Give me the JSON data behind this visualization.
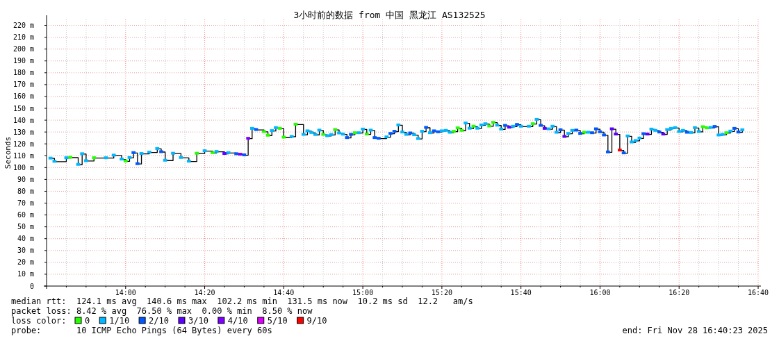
{
  "chart_data": {
    "type": "step",
    "title": "3小时前的数据 from 中国 黑龙江 AS132525",
    "ylabel": "Seconds",
    "xlim": [
      "2025-11-28T13:40",
      "2025-11-28T16:40"
    ],
    "xticks": [
      {
        "value": "2025-11-28T13:45",
        "label": null
      },
      {
        "value": "2025-11-28T13:50",
        "label": null
      },
      {
        "value": "2025-11-28T13:55",
        "label": null
      },
      {
        "value": "2025-11-28T14:00",
        "label": "14:00"
      },
      {
        "value": "2025-11-28T14:05",
        "label": null
      },
      {
        "value": "2025-11-28T14:10",
        "label": null
      },
      {
        "value": "2025-11-28T14:15",
        "label": null
      },
      {
        "value": "2025-11-28T14:20",
        "label": "14:20"
      },
      {
        "value": "2025-11-28T14:25",
        "label": null
      },
      {
        "value": "2025-11-28T14:30",
        "label": null
      },
      {
        "value": "2025-11-28T14:35",
        "label": null
      },
      {
        "value": "2025-11-28T14:40",
        "label": "14:40"
      },
      {
        "value": "2025-11-28T14:45",
        "label": null
      },
      {
        "value": "2025-11-28T14:50",
        "label": null
      },
      {
        "value": "2025-11-28T14:55",
        "label": null
      },
      {
        "value": "2025-11-28T15:00",
        "label": "15:00"
      },
      {
        "value": "2025-11-28T15:05",
        "label": null
      },
      {
        "value": "2025-11-28T15:10",
        "label": null
      },
      {
        "value": "2025-11-28T15:15",
        "label": null
      },
      {
        "value": "2025-11-28T15:20",
        "label": "15:20"
      },
      {
        "value": "2025-11-28T15:25",
        "label": null
      },
      {
        "value": "2025-11-28T15:30",
        "label": null
      },
      {
        "value": "2025-11-28T15:35",
        "label": null
      },
      {
        "value": "2025-11-28T15:40",
        "label": "15:40"
      },
      {
        "value": "2025-11-28T15:45",
        "label": null
      },
      {
        "value": "2025-11-28T15:50",
        "label": null
      },
      {
        "value": "2025-11-28T15:55",
        "label": null
      },
      {
        "value": "2025-11-28T16:00",
        "label": "16:00"
      },
      {
        "value": "2025-11-28T16:05",
        "label": null
      },
      {
        "value": "2025-11-28T16:10",
        "label": null
      },
      {
        "value": "2025-11-28T16:15",
        "label": null
      },
      {
        "value": "2025-11-28T16:20",
        "label": "16:20"
      },
      {
        "value": "2025-11-28T16:25",
        "label": null
      },
      {
        "value": "2025-11-28T16:30",
        "label": null
      },
      {
        "value": "2025-11-28T16:35",
        "label": null
      },
      {
        "value": "2025-11-28T16:40",
        "label": "16:40"
      }
    ],
    "ylim": [
      0,
      225
    ],
    "yticks": [
      {
        "value": 0,
        "label": "0"
      },
      {
        "value": 10,
        "label": "10 m"
      },
      {
        "value": 20,
        "label": "20 m"
      },
      {
        "value": 30,
        "label": "30 m"
      },
      {
        "value": 40,
        "label": "40 m"
      },
      {
        "value": 50,
        "label": "50 m"
      },
      {
        "value": 60,
        "label": "60 m"
      },
      {
        "value": 70,
        "label": "70 m"
      },
      {
        "value": 80,
        "label": "80 m"
      },
      {
        "value": 90,
        "label": "90 m"
      },
      {
        "value": 100,
        "label": "100 m"
      },
      {
        "value": 110,
        "label": "110 m"
      },
      {
        "value": 120,
        "label": "120 m"
      },
      {
        "value": 130,
        "label": "130 m"
      },
      {
        "value": 140,
        "label": "140 m"
      },
      {
        "value": 150,
        "label": "150 m"
      },
      {
        "value": 160,
        "label": "160 m"
      },
      {
        "value": 170,
        "label": "170 m"
      },
      {
        "value": 180,
        "label": "180 m"
      },
      {
        "value": 190,
        "label": "190 m"
      },
      {
        "value": 200,
        "label": "200 m"
      },
      {
        "value": 210,
        "label": "210 m"
      },
      {
        "value": 220,
        "label": "220 m"
      }
    ],
    "grid": true,
    "legend": "bottom",
    "legend_title": "loss color:",
    "annotations": [
      "median rtt:  124.1 ms avg  140.6 ms max  102.2 ms min  131.5 ms now  10.2 ms sd  12.2   am/s",
      "packet loss: 8.42 % avg  76.50 % max  0.00 % min  8.50 % now",
      "probe:       10 ICMP Echo Pings (64 Bytes) every 60s",
      "end: Fri Nov 28 16:40:23 2025"
    ],
    "x": [
      "2025-11-28T13:41",
      "2025-11-28T13:42",
      "2025-11-28T13:45",
      "2025-11-28T13:46",
      "2025-11-28T13:48",
      "2025-11-28T13:49",
      "2025-11-28T13:50",
      "2025-11-28T13:52",
      "2025-11-28T13:55",
      "2025-11-28T13:57",
      "2025-11-28T13:59",
      "2025-11-28T14:00",
      "2025-11-28T14:01",
      "2025-11-28T14:02",
      "2025-11-28T14:03",
      "2025-11-28T14:04",
      "2025-11-28T14:06",
      "2025-11-28T14:08",
      "2025-11-28T14:09",
      "2025-11-28T14:10",
      "2025-11-28T14:12",
      "2025-11-28T14:14",
      "2025-11-28T14:16",
      "2025-11-28T14:18",
      "2025-11-28T14:20",
      "2025-11-28T14:22",
      "2025-11-28T14:23",
      "2025-11-28T14:25",
      "2025-11-28T14:26",
      "2025-11-28T14:28",
      "2025-11-28T14:29",
      "2025-11-28T14:30",
      "2025-11-28T14:31",
      "2025-11-28T14:32",
      "2025-11-28T14:33",
      "2025-11-28T14:35",
      "2025-11-28T14:36",
      "2025-11-28T14:37",
      "2025-11-28T14:38",
      "2025-11-28T14:39",
      "2025-11-28T14:40",
      "2025-11-28T14:42",
      "2025-11-28T14:43",
      "2025-11-28T14:45",
      "2025-11-28T14:46",
      "2025-11-28T14:47",
      "2025-11-28T14:48",
      "2025-11-28T14:49",
      "2025-11-28T14:50",
      "2025-11-28T14:51",
      "2025-11-28T14:52",
      "2025-11-28T14:53",
      "2025-11-28T14:54",
      "2025-11-28T14:55",
      "2025-11-28T14:56",
      "2025-11-28T14:57",
      "2025-11-28T14:58",
      "2025-11-28T14:59",
      "2025-11-28T15:00",
      "2025-11-28T15:01",
      "2025-11-28T15:02",
      "2025-11-28T15:03",
      "2025-11-28T15:04",
      "2025-11-28T15:06",
      "2025-11-28T15:07",
      "2025-11-28T15:08",
      "2025-11-28T15:09",
      "2025-11-28T15:10",
      "2025-11-28T15:11",
      "2025-11-28T15:12",
      "2025-11-28T15:13",
      "2025-11-28T15:14",
      "2025-11-28T15:15",
      "2025-11-28T15:16",
      "2025-11-28T15:17",
      "2025-11-28T15:18",
      "2025-11-28T15:19",
      "2025-11-28T15:20",
      "2025-11-28T15:21",
      "2025-11-28T15:22",
      "2025-11-28T15:23",
      "2025-11-28T15:24",
      "2025-11-28T15:25",
      "2025-11-28T15:26",
      "2025-11-28T15:27",
      "2025-11-28T15:28",
      "2025-11-28T15:29",
      "2025-11-28T15:30",
      "2025-11-28T15:31",
      "2025-11-28T15:32",
      "2025-11-28T15:33",
      "2025-11-28T15:34",
      "2025-11-28T15:35",
      "2025-11-28T15:36",
      "2025-11-28T15:37",
      "2025-11-28T15:38",
      "2025-11-28T15:39",
      "2025-11-28T15:40",
      "2025-11-28T15:42",
      "2025-11-28T15:43",
      "2025-11-28T15:44",
      "2025-11-28T15:45",
      "2025-11-28T15:46",
      "2025-11-28T15:47",
      "2025-11-28T15:48",
      "2025-11-28T15:49",
      "2025-11-28T15:50",
      "2025-11-28T15:51",
      "2025-11-28T15:52",
      "2025-11-28T15:53",
      "2025-11-28T15:54",
      "2025-11-28T15:55",
      "2025-11-28T15:56",
      "2025-11-28T15:57",
      "2025-11-28T15:58",
      "2025-11-28T15:59",
      "2025-11-28T16:00",
      "2025-11-28T16:01",
      "2025-11-28T16:02",
      "2025-11-28T16:03",
      "2025-11-28T16:04",
      "2025-11-28T16:05",
      "2025-11-28T16:06",
      "2025-11-28T16:07",
      "2025-11-28T16:08",
      "2025-11-28T16:09",
      "2025-11-28T16:10",
      "2025-11-28T16:11",
      "2025-11-28T16:12",
      "2025-11-28T16:13",
      "2025-11-28T16:14",
      "2025-11-28T16:15",
      "2025-11-28T16:16",
      "2025-11-28T16:17",
      "2025-11-28T16:18",
      "2025-11-28T16:19",
      "2025-11-28T16:20",
      "2025-11-28T16:21",
      "2025-11-28T16:22",
      "2025-11-28T16:23",
      "2025-11-28T16:24",
      "2025-11-28T16:25",
      "2025-11-28T16:26",
      "2025-11-28T16:27",
      "2025-11-28T16:28",
      "2025-11-28T16:29",
      "2025-11-28T16:30",
      "2025-11-28T16:31",
      "2025-11-28T16:32",
      "2025-11-28T16:33",
      "2025-11-28T16:34",
      "2025-11-28T16:35",
      "2025-11-28T16:36"
    ],
    "series": [
      {
        "color": "#000000",
        "values": [
          107.7,
          105,
          108,
          108.4,
          102.4,
          111.4,
          105.5,
          108,
          108,
          110.2,
          106.9,
          105.3,
          108.2,
          112.3,
          103,
          111.6,
          112.7,
          115.8,
          113.1,
          105.9,
          111.8,
          108.2,
          105.1,
          111.8,
          113.9,
          112.3,
          113.3,
          111.6,
          112.3,
          111.4,
          111,
          110.4,
          124.4,
          132.8,
          131.8,
          130.1,
          127,
          130.9,
          133.4,
          132.8,
          125.4,
          126,
          136.3,
          127.7,
          130.7,
          129.3,
          127.6,
          131.3,
          127.7,
          126.6,
          127.5,
          131.8,
          128.9,
          127.9,
          125,
          127.7,
          129.1,
          129.1,
          132.2,
          128,
          131.3,
          125,
          124.4,
          125.6,
          128.5,
          130.3,
          135.7,
          129.7,
          127.7,
          128.9,
          127.4,
          124.2,
          130.3,
          133.6,
          129.1,
          130.7,
          129.9,
          130.7,
          131.1,
          129.5,
          130.3,
          133.2,
          131.1,
          137.3,
          132.9,
          134.6,
          132.9,
          135.7,
          136.7,
          134.8,
          137.9,
          135.5,
          132.2,
          135.3,
          133.8,
          134.6,
          136.1,
          134.6,
          134.6,
          136.7,
          140.4,
          135.3,
          132.8,
          132.4,
          134.6,
          129.5,
          131.6,
          126,
          128.5,
          131.1,
          131.3,
          128.5,
          129.5,
          129.5,
          129.1,
          132.4,
          129.9,
          127.2,
          112.9,
          132.4,
          128,
          114.5,
          112.1,
          126.4,
          121.3,
          122.5,
          124.6,
          128.3,
          128,
          132.2,
          131.1,
          129.7,
          128,
          131.8,
          132.8,
          133.4,
          130.1,
          131.1,
          129.5,
          129.3,
          133.4,
          130.1,
          134.2,
          133.2,
          133.6,
          134.4,
          127.2,
          127.7,
          129.1,
          130.5,
          132.8,
          129.7,
          131.6
        ]
      },
      {
        "name": "0",
        "type": "scatter",
        "marker": "square",
        "color": "#26ff00",
        "x": [
          "2025-11-28T13:46",
          "2025-11-28T13:52",
          "2025-11-28T14:00",
          "2025-11-28T14:18",
          "2025-11-28T14:22",
          "2025-11-28T14:35",
          "2025-11-28T14:36",
          "2025-11-28T14:39",
          "2025-11-28T14:40",
          "2025-11-28T14:43",
          "2025-11-28T14:50",
          "2025-11-28T14:53",
          "2025-11-28T14:58",
          "2025-11-28T15:01",
          "2025-11-28T15:23",
          "2025-11-28T15:24",
          "2025-11-28T15:25",
          "2025-11-28T15:28",
          "2025-11-28T15:32",
          "2025-11-28T15:33",
          "2025-11-28T15:43",
          "2025-11-28T15:56",
          "2025-11-28T16:26",
          "2025-11-28T16:27",
          "2025-11-28T16:32"
        ],
        "values": [
          108.4,
          108,
          105.3,
          111.8,
          112.3,
          130.1,
          127,
          132.8,
          125.4,
          136.3,
          127.7,
          131.8,
          129.1,
          128,
          130.3,
          133.2,
          131.1,
          134.6,
          134.8,
          137.9,
          136.7,
          129.5,
          134.2,
          133.2,
          129.1
        ]
      },
      {
        "name": "1/10",
        "type": "scatter",
        "marker": "square",
        "color": "#00b8ff",
        "x": [
          "2025-11-28T13:41",
          "2025-11-28T13:42",
          "2025-11-28T13:45",
          "2025-11-28T13:48",
          "2025-11-28T13:49",
          "2025-11-28T13:50",
          "2025-11-28T13:55",
          "2025-11-28T13:57",
          "2025-11-28T13:59",
          "2025-11-28T14:01",
          "2025-11-28T14:04",
          "2025-11-28T14:06",
          "2025-11-28T14:08",
          "2025-11-28T14:10",
          "2025-11-28T14:12",
          "2025-11-28T14:14",
          "2025-11-28T14:16",
          "2025-11-28T14:20",
          "2025-11-28T14:23",
          "2025-11-28T14:26",
          "2025-11-28T14:32",
          "2025-11-28T14:37",
          "2025-11-28T14:38",
          "2025-11-28T14:42",
          "2025-11-28T14:45",
          "2025-11-28T14:46",
          "2025-11-28T14:47",
          "2025-11-28T14:48",
          "2025-11-28T14:49",
          "2025-11-28T14:51",
          "2025-11-28T14:52",
          "2025-11-28T14:54",
          "2025-11-28T14:55",
          "2025-11-28T14:59",
          "2025-11-28T15:00",
          "2025-11-28T15:02",
          "2025-11-28T15:06",
          "2025-11-28T15:09",
          "2025-11-28T15:10",
          "2025-11-28T15:11",
          "2025-11-28T15:13",
          "2025-11-28T15:14",
          "2025-11-28T15:15",
          "2025-11-28T15:17",
          "2025-11-28T15:20",
          "2025-11-28T15:21",
          "2025-11-28T15:22",
          "2025-11-28T15:26",
          "2025-11-28T15:27",
          "2025-11-28T15:29",
          "2025-11-28T15:30",
          "2025-11-28T15:31",
          "2025-11-28T15:34",
          "2025-11-28T15:35",
          "2025-11-28T15:38",
          "2025-11-28T15:40",
          "2025-11-28T15:42",
          "2025-11-28T15:44",
          "2025-11-28T15:47",
          "2025-11-28T15:48",
          "2025-11-28T15:49",
          "2025-11-28T15:52",
          "2025-11-28T15:53",
          "2025-11-28T15:57",
          "2025-11-28T16:07",
          "2025-11-28T16:08",
          "2025-11-28T16:09",
          "2025-11-28T16:10",
          "2025-11-28T16:13",
          "2025-11-28T16:14",
          "2025-11-28T16:17",
          "2025-11-28T16:18",
          "2025-11-28T16:19",
          "2025-11-28T16:20",
          "2025-11-28T16:21",
          "2025-11-28T16:23",
          "2025-11-28T16:24",
          "2025-11-28T16:25",
          "2025-11-28T16:28",
          "2025-11-28T16:30",
          "2025-11-28T16:31",
          "2025-11-28T16:33",
          "2025-11-28T16:36"
        ],
        "values": [
          107.7,
          105,
          108,
          102.4,
          111.4,
          105.5,
          108,
          110.2,
          106.9,
          108.2,
          111.6,
          112.7,
          115.8,
          105.9,
          111.8,
          108.2,
          105.1,
          113.9,
          113.3,
          112.3,
          132.8,
          130.9,
          133.4,
          126,
          127.7,
          130.7,
          129.3,
          127.6,
          131.3,
          126.6,
          127.5,
          128.9,
          127.9,
          129.1,
          132.2,
          131.3,
          125.6,
          135.7,
          129.7,
          127.7,
          127.4,
          124.2,
          130.3,
          129.1,
          130.7,
          131.1,
          129.5,
          137.3,
          132.9,
          132.9,
          135.7,
          136.7,
          135.5,
          132.2,
          134.6,
          134.6,
          134.6,
          140.4,
          132.4,
          134.6,
          129.5,
          128.5,
          131.1,
          129.5,
          126.4,
          121.3,
          122.5,
          124.6,
          132.2,
          131.1,
          131.8,
          132.8,
          133.4,
          130.1,
          131.1,
          129.3,
          133.4,
          130.1,
          133.6,
          127.2,
          127.7,
          130.5,
          131.6
        ]
      },
      {
        "name": "2/10",
        "type": "scatter",
        "marker": "square",
        "color": "#0059ff",
        "x": [
          "2025-11-28T14:02",
          "2025-11-28T14:03",
          "2025-11-28T14:09",
          "2025-11-28T14:28",
          "2025-11-28T14:30",
          "2025-11-28T14:33",
          "2025-11-28T14:56",
          "2025-11-28T14:57",
          "2025-11-28T15:03",
          "2025-11-28T15:04",
          "2025-11-28T15:07",
          "2025-11-28T15:08",
          "2025-11-28T15:12",
          "2025-11-28T15:16",
          "2025-11-28T15:18",
          "2025-11-28T15:19",
          "2025-11-28T15:36",
          "2025-11-28T15:39",
          "2025-11-28T15:45",
          "2025-11-28T15:50",
          "2025-11-28T15:54",
          "2025-11-28T15:55",
          "2025-11-28T15:58",
          "2025-11-28T15:59",
          "2025-11-28T16:00",
          "2025-11-28T16:01",
          "2025-11-28T16:02",
          "2025-11-28T16:06",
          "2025-11-28T16:11",
          "2025-11-28T16:15",
          "2025-11-28T16:22",
          "2025-11-28T16:29",
          "2025-11-28T16:34",
          "2025-11-28T16:35"
        ],
        "values": [
          112.3,
          103,
          113.1,
          111.4,
          110.4,
          131.8,
          125,
          127.7,
          125,
          124.4,
          128.5,
          130.3,
          128.9,
          133.6,
          130.7,
          129.9,
          135.3,
          136.1,
          135.3,
          131.6,
          131.3,
          128.5,
          129.1,
          132.4,
          129.9,
          127.2,
          112.9,
          112.1,
          128.3,
          129.7,
          129.5,
          134.4,
          132.8,
          129.7
        ]
      },
      {
        "name": "3/10",
        "type": "scatter",
        "marker": "square",
        "color": "#5e00ff",
        "x": [
          "2025-11-28T14:25",
          "2025-11-28T15:37",
          "2025-11-28T15:46",
          "2025-11-28T15:51",
          "2025-11-28T16:03",
          "2025-11-28T16:04",
          "2025-11-28T16:12",
          "2025-11-28T16:16"
        ],
        "values": [
          111.6,
          133.8,
          132.8,
          126,
          132.4,
          128,
          128,
          128
        ]
      },
      {
        "name": "4/10",
        "type": "scatter",
        "marker": "square",
        "color": "#7e00ff",
        "x": [
          "2025-11-28T14:29",
          "2025-11-28T14:31"
        ],
        "values": [
          111,
          124.4
        ]
      },
      {
        "name": "5/10",
        "type": "scatter",
        "marker": "square",
        "color": "#dd00ff",
        "values": [
          null,
          null,
          null,
          null,
          null,
          null,
          null,
          null,
          null,
          null,
          null,
          null,
          null,
          null,
          null,
          null,
          null,
          null,
          null,
          null,
          null,
          null,
          null,
          null,
          null,
          null,
          null,
          null,
          null,
          null,
          null,
          null,
          null,
          null,
          null,
          null,
          null,
          null,
          null,
          null,
          null,
          null,
          null,
          null,
          null,
          null,
          null,
          null,
          null,
          null,
          null,
          null,
          null,
          null,
          null,
          null,
          null,
          null,
          null,
          null,
          null,
          null,
          null,
          null,
          null,
          null,
          null,
          null,
          null,
          null,
          null,
          null,
          null,
          null,
          null,
          null,
          null,
          null,
          null,
          null,
          null,
          null,
          null,
          null,
          null,
          null,
          null,
          null,
          null,
          null,
          null,
          null,
          null,
          null,
          null,
          null,
          null,
          null,
          null,
          null,
          null,
          null,
          null,
          null,
          null,
          null,
          null,
          null,
          null,
          null,
          null,
          null,
          null,
          null,
          null,
          null,
          null,
          null,
          null,
          null,
          null,
          null,
          null,
          null,
          null,
          null,
          null,
          null,
          null,
          null,
          null,
          null,
          null,
          null,
          null,
          null,
          null,
          null,
          null,
          null,
          null,
          null,
          null,
          null,
          null,
          null,
          null,
          null,
          null,
          null,
          null,
          null,
          null
        ]
      },
      {
        "name": "9/10",
        "type": "scatter",
        "marker": "square",
        "color": "#ff0000",
        "x": [
          "2025-11-28T16:05"
        ],
        "values": [
          114.5
        ]
      }
    ]
  }
}
